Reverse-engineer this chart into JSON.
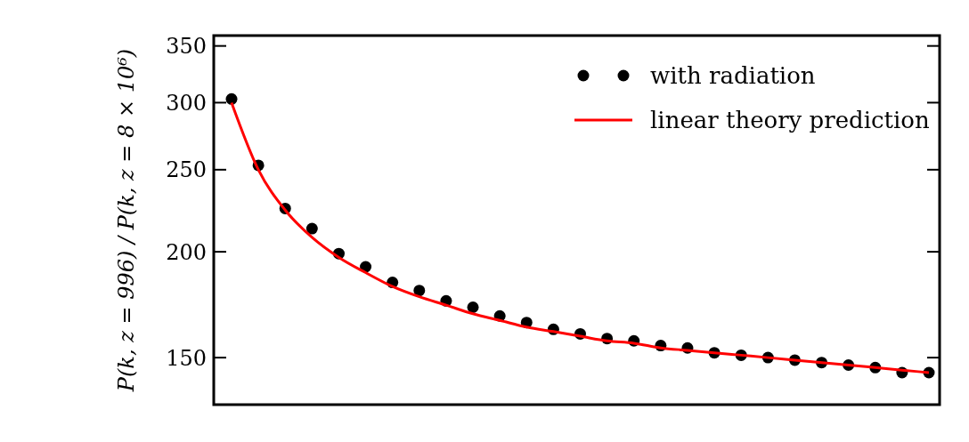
{
  "chart_data": {
    "type": "scatter",
    "ylabel": "P(k, z = 996) / P(k, z = 8 × 10⁶)",
    "log": "y",
    "ylim": [
      132,
      360
    ],
    "yticks": [
      150,
      200,
      250,
      300,
      350
    ],
    "legend": "top right",
    "grid": false,
    "categories": [
      null,
      null,
      null,
      null,
      null,
      null,
      null,
      null,
      null,
      null,
      null,
      null,
      null,
      null,
      null,
      null,
      null,
      null,
      null,
      null,
      null,
      null,
      null,
      null,
      null,
      null,
      null
    ],
    "series": [
      {
        "name": "with radiation",
        "marker": "circle",
        "color": "#000000",
        "values": [
          303,
          253,
          225,
          213,
          199,
          192,
          184,
          180,
          175,
          172,
          168,
          165,
          162,
          160,
          158,
          157,
          155,
          154,
          152,
          151,
          150,
          149,
          148,
          147,
          146,
          144,
          144
        ]
      },
      {
        "name": "linear theory prediction",
        "type": "line",
        "line_style": "solid",
        "color": "#ff0000",
        "values": [
          300,
          250,
          224,
          208,
          197,
          189,
          182,
          177,
          173,
          169,
          166,
          163,
          161,
          159,
          157,
          156,
          154,
          153,
          152,
          151,
          150,
          149,
          148,
          147,
          146,
          145,
          144
        ]
      }
    ]
  }
}
